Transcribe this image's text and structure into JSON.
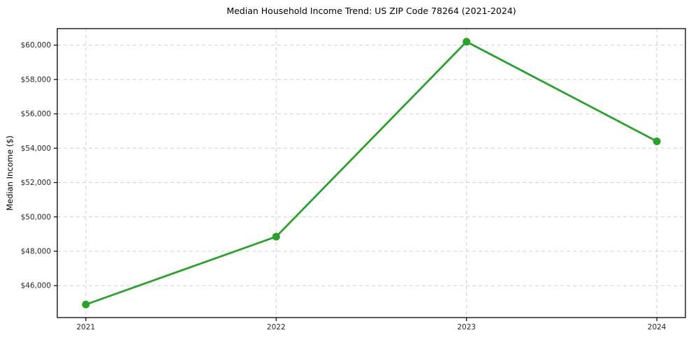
{
  "figure": {
    "background": "#ffffff"
  },
  "chart_data": {
    "type": "line",
    "title": "Median Household Income Trend: US ZIP Code 78264 (2021-2024)",
    "xlabel": "",
    "ylabel": "Median Income ($)",
    "x": [
      2021,
      2022,
      2023,
      2024
    ],
    "values": [
      44900,
      48850,
      60200,
      54400
    ],
    "xlim": [
      2020.85,
      2024.15
    ],
    "ylim": [
      44140,
      60960
    ],
    "xticks": [
      {
        "value": 2021,
        "label": "2021"
      },
      {
        "value": 2022,
        "label": "2022"
      },
      {
        "value": 2023,
        "label": "2023"
      },
      {
        "value": 2024,
        "label": "2024"
      }
    ],
    "yticks": [
      {
        "value": 46000,
        "label": "$46,000"
      },
      {
        "value": 48000,
        "label": "$48,000"
      },
      {
        "value": 50000,
        "label": "$50,000"
      },
      {
        "value": 52000,
        "label": "$52,000"
      },
      {
        "value": 54000,
        "label": "$54,000"
      },
      {
        "value": 56000,
        "label": "$56,000"
      },
      {
        "value": 58000,
        "label": "$58,000"
      },
      {
        "value": 60000,
        "label": "$60,000"
      }
    ],
    "grid": true,
    "grid_style": "dashed",
    "legend": false,
    "styles": {
      "line_color": "#2ca02c",
      "marker_color": "#2ca02c",
      "marker_radius": 5.5,
      "line_width": 2.8,
      "grid_color": "#cfcfcf",
      "spine_color": "#000000",
      "tick_text_color": "#262626"
    }
  }
}
